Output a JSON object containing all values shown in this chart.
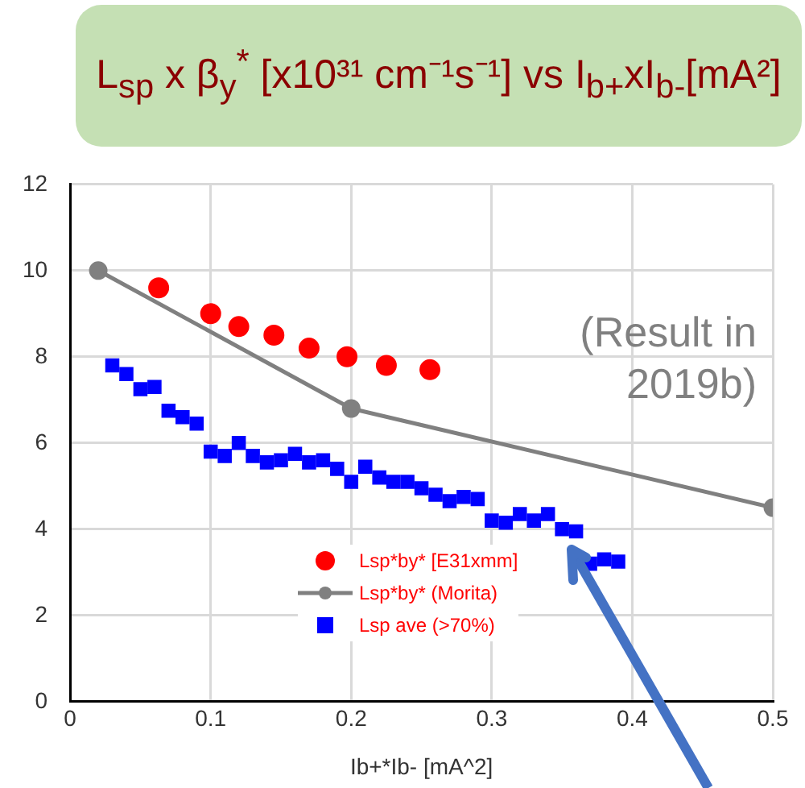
{
  "chart_data": {
    "type": "scatter",
    "title": "L$_{sp}$ x β$_{y}$$^{*}$ [x10³¹ cm⁻¹s⁻¹] vs I$_{b+}$xI$_{b-}$[mA²]",
    "xlabel": "Ib+*Ib- [mA^2]",
    "annotations": [
      "(Result in 2019b)"
    ],
    "xlim": [
      0,
      0.5
    ],
    "xticks": [
      0,
      0.1,
      0.2,
      0.3,
      0.4,
      0.5
    ],
    "ylim": [
      0,
      12
    ],
    "yticks": [
      0,
      2,
      4,
      6,
      8,
      10,
      12
    ],
    "grid": true,
    "legend": "bottom",
    "series": [
      {
        "name": "Lsp*by* [E31xmm]",
        "marker": "circle",
        "color": "#ff0000",
        "x": [
          0.063,
          0.1,
          0.12,
          0.145,
          0.17,
          0.197,
          0.225,
          0.256
        ],
        "values": [
          9.6,
          9.0,
          8.7,
          8.5,
          8.2,
          8.0,
          7.8,
          7.7
        ]
      },
      {
        "name": "Lsp*by* (Morita)",
        "type": "line",
        "marker": "circle",
        "line_style": "solid",
        "color": "#808080",
        "x": [
          0.02,
          0.2,
          0.5
        ],
        "values": [
          10,
          6.8,
          4.5
        ]
      },
      {
        "name": "Lsp ave (>70%)",
        "marker": "square",
        "color": "#0000ff",
        "x": [
          0.03,
          0.04,
          0.05,
          0.06,
          0.07,
          0.08,
          0.09,
          0.1,
          0.11,
          0.12,
          0.13,
          0.14,
          0.15,
          0.16,
          0.17,
          0.18,
          0.19,
          0.2,
          0.21,
          0.22,
          0.23,
          0.24,
          0.25,
          0.26,
          0.27,
          0.28,
          0.29,
          0.3,
          0.31,
          0.32,
          0.33,
          0.34,
          0.35,
          0.36,
          0.37,
          0.38,
          0.39
        ],
        "values": [
          7.8,
          7.6,
          7.25,
          7.3,
          6.75,
          6.6,
          6.45,
          5.8,
          5.7,
          6.0,
          5.7,
          5.55,
          5.6,
          5.75,
          5.55,
          5.6,
          5.4,
          5.1,
          5.45,
          5.2,
          5.1,
          5.1,
          4.95,
          4.8,
          4.65,
          4.75,
          4.7,
          4.2,
          4.15,
          4.35,
          4.2,
          4.35,
          4.0,
          3.95,
          3.2,
          3.3,
          3.25
        ]
      }
    ]
  }
}
